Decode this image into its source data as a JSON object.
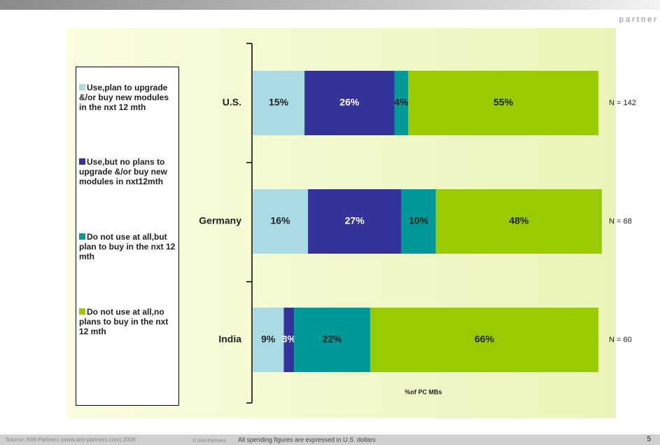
{
  "logo": "p a r t n e r",
  "chart_data": {
    "type": "stacked-bar-horizontal",
    "categories": [
      "U.S.",
      "Germany",
      "India"
    ],
    "series": [
      {
        "name": "Use,plan to upgrade &/or buy new modules in the nxt 12 mth",
        "color": "#a9dbe3",
        "label_color": "#222222",
        "values": [
          15,
          16,
          9
        ],
        "value_labels": [
          "15%",
          "16%",
          "9%"
        ]
      },
      {
        "name": "Use,but no plans to upgrade &/or buy new modules in nxt12mth",
        "color": "#333399",
        "label_color": "#ffffff",
        "values": [
          26,
          27,
          3
        ],
        "value_labels": [
          "26%",
          "27%",
          "3%"
        ]
      },
      {
        "name": "Do not use at all,but plan to buy in the nxt 12 mth",
        "color": "#009999",
        "label_color": "#222222",
        "values": [
          4,
          10,
          22
        ],
        "value_labels": [
          "4%",
          "10%",
          "22%"
        ]
      },
      {
        "name": "Do not use at all,no plans to buy in the nxt 12 mth",
        "color": "#99cc00",
        "label_color": "#222222",
        "values": [
          55,
          48,
          66
        ],
        "value_labels": [
          "55%",
          "48%",
          "66%"
        ]
      }
    ],
    "xlim": [
      0,
      100
    ],
    "xlabel": "%of PC MBs",
    "annotations": [
      "N = 142",
      "N = 68",
      "N = 60"
    ]
  },
  "footer": {
    "source": "Source: AMI-Partners (www.ami-partners.com) 2008",
    "copyright": "© AMI-Partners",
    "note": "All spending figures are expressed in U.S. dollars",
    "page": "5"
  }
}
